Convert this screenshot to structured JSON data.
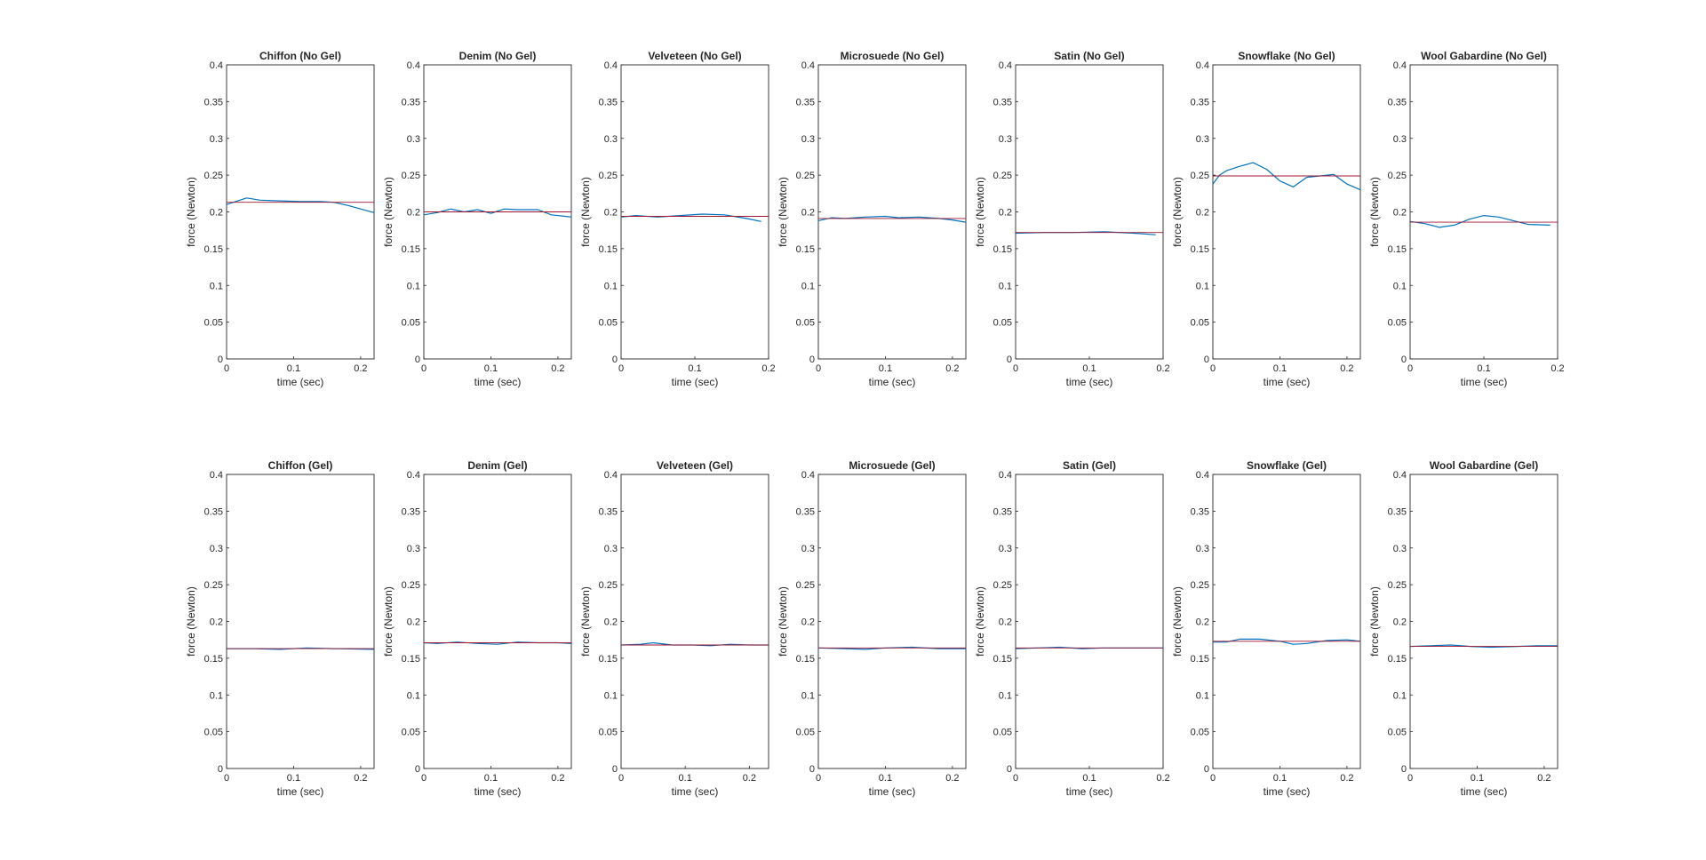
{
  "figure": {
    "xlabel": "time (sec)",
    "ylabel": "force (Newton)",
    "colors": {
      "series": "#0072BD",
      "mean": "#A2142F",
      "axis": "#262626",
      "text": "#262626"
    }
  },
  "chart_data": [
    {
      "type": "line",
      "title": "Chiffon (No Gel)",
      "xlabel": "time (sec)",
      "ylabel": "force (Newton)",
      "xlim": [
        0,
        0.22
      ],
      "ylim": [
        0,
        0.4
      ],
      "xticks": [
        "0",
        "0.1",
        "0.2"
      ],
      "yticks": [
        "0",
        "0.05",
        "0.1",
        "0.15",
        "0.2",
        "0.25",
        "0.3",
        "0.35",
        "0.4"
      ],
      "series": [
        {
          "role": "signal",
          "x": [
            0,
            0.03,
            0.05,
            0.08,
            0.11,
            0.14,
            0.16,
            0.18,
            0.2,
            0.22
          ],
          "y": [
            0.21,
            0.219,
            0.216,
            0.215,
            0.214,
            0.214,
            0.213,
            0.209,
            0.204,
            0.199
          ]
        },
        {
          "role": "mean",
          "x": [
            0,
            0.22
          ],
          "y": [
            0.213,
            0.213
          ]
        }
      ]
    },
    {
      "type": "line",
      "title": "Denim (No Gel)",
      "xlabel": "time (sec)",
      "ylabel": "force (Newton)",
      "xlim": [
        0,
        0.22
      ],
      "ylim": [
        0,
        0.4
      ],
      "xticks": [
        "0",
        "0.1",
        "0.2"
      ],
      "yticks": [
        "0",
        "0.05",
        "0.1",
        "0.15",
        "0.2",
        "0.25",
        "0.3",
        "0.35",
        "0.4"
      ],
      "series": [
        {
          "role": "signal",
          "x": [
            0,
            0.02,
            0.04,
            0.06,
            0.08,
            0.1,
            0.12,
            0.14,
            0.17,
            0.19,
            0.22
          ],
          "y": [
            0.196,
            0.199,
            0.204,
            0.2,
            0.203,
            0.198,
            0.204,
            0.203,
            0.203,
            0.196,
            0.193
          ]
        },
        {
          "role": "mean",
          "x": [
            0,
            0.22
          ],
          "y": [
            0.2,
            0.2
          ]
        }
      ]
    },
    {
      "type": "line",
      "title": "Velveteen (No Gel)",
      "xlabel": "time (sec)",
      "ylabel": "force (Newton)",
      "xlim": [
        0,
        0.2
      ],
      "ylim": [
        0,
        0.4
      ],
      "xticks": [
        "0",
        "0.1",
        "0.2"
      ],
      "yticks": [
        "0",
        "0.05",
        "0.1",
        "0.15",
        "0.2",
        "0.25",
        "0.3",
        "0.35",
        "0.4"
      ],
      "series": [
        {
          "role": "signal",
          "x": [
            0,
            0.02,
            0.05,
            0.08,
            0.11,
            0.14,
            0.17,
            0.19
          ],
          "y": [
            0.193,
            0.195,
            0.193,
            0.195,
            0.197,
            0.196,
            0.191,
            0.187
          ]
        },
        {
          "role": "mean",
          "x": [
            0,
            0.2
          ],
          "y": [
            0.194,
            0.194
          ]
        }
      ]
    },
    {
      "type": "line",
      "title": "Microsuede (No Gel)",
      "xlabel": "time (sec)",
      "ylabel": "force (Newton)",
      "xlim": [
        0,
        0.22
      ],
      "ylim": [
        0,
        0.4
      ],
      "xticks": [
        "0",
        "0.1",
        "0.2"
      ],
      "yticks": [
        "0",
        "0.05",
        "0.1",
        "0.15",
        "0.2",
        "0.25",
        "0.3",
        "0.35",
        "0.4"
      ],
      "series": [
        {
          "role": "signal",
          "x": [
            0,
            0.02,
            0.04,
            0.07,
            0.1,
            0.12,
            0.15,
            0.18,
            0.2,
            0.22
          ],
          "y": [
            0.188,
            0.192,
            0.191,
            0.193,
            0.194,
            0.192,
            0.193,
            0.191,
            0.189,
            0.186
          ]
        },
        {
          "role": "mean",
          "x": [
            0,
            0.22
          ],
          "y": [
            0.191,
            0.191
          ]
        }
      ]
    },
    {
      "type": "line",
      "title": "Satin (No Gel)",
      "xlabel": "time (sec)",
      "ylabel": "force (Newton)",
      "xlim": [
        0,
        0.2
      ],
      "ylim": [
        0,
        0.4
      ],
      "xticks": [
        "0",
        "0.1",
        "0.2"
      ],
      "yticks": [
        "0",
        "0.05",
        "0.1",
        "0.15",
        "0.2",
        "0.25",
        "0.3",
        "0.35",
        "0.4"
      ],
      "series": [
        {
          "role": "signal",
          "x": [
            0,
            0.04,
            0.08,
            0.12,
            0.16,
            0.19
          ],
          "y": [
            0.171,
            0.172,
            0.172,
            0.173,
            0.171,
            0.169
          ]
        },
        {
          "role": "mean",
          "x": [
            0,
            0.2
          ],
          "y": [
            0.172,
            0.172
          ]
        }
      ]
    },
    {
      "type": "line",
      "title": "Snowflake (No Gel)",
      "xlabel": "time (sec)",
      "ylabel": "force (Newton)",
      "xlim": [
        0,
        0.22
      ],
      "ylim": [
        0,
        0.4
      ],
      "xticks": [
        "0",
        "0.1",
        "0.2"
      ],
      "yticks": [
        "0",
        "0.05",
        "0.1",
        "0.15",
        "0.2",
        "0.25",
        "0.3",
        "0.35",
        "0.4"
      ],
      "series": [
        {
          "role": "signal",
          "x": [
            0,
            0.01,
            0.02,
            0.04,
            0.06,
            0.08,
            0.1,
            0.12,
            0.14,
            0.16,
            0.18,
            0.2,
            0.22
          ],
          "y": [
            0.238,
            0.25,
            0.256,
            0.262,
            0.267,
            0.258,
            0.242,
            0.234,
            0.247,
            0.249,
            0.251,
            0.238,
            0.23
          ]
        },
        {
          "role": "mean",
          "x": [
            0,
            0.22
          ],
          "y": [
            0.249,
            0.249
          ]
        }
      ]
    },
    {
      "type": "line",
      "title": "Wool Gabardine (No Gel)",
      "xlabel": "time (sec)",
      "ylabel": "force (Newton)",
      "xlim": [
        0,
        0.2
      ],
      "ylim": [
        0,
        0.4
      ],
      "xticks": [
        "0",
        "0.1",
        "0.2"
      ],
      "yticks": [
        "0",
        "0.05",
        "0.1",
        "0.15",
        "0.2",
        "0.25",
        "0.3",
        "0.35",
        "0.4"
      ],
      "series": [
        {
          "role": "signal",
          "x": [
            0,
            0.02,
            0.04,
            0.06,
            0.08,
            0.1,
            0.12,
            0.14,
            0.16,
            0.19
          ],
          "y": [
            0.187,
            0.184,
            0.179,
            0.182,
            0.19,
            0.195,
            0.193,
            0.188,
            0.183,
            0.182
          ]
        },
        {
          "role": "mean",
          "x": [
            0,
            0.2
          ],
          "y": [
            0.186,
            0.186
          ]
        }
      ]
    },
    {
      "type": "line",
      "title": "Chiffon (Gel)",
      "xlabel": "time (sec)",
      "ylabel": "force (Newton)",
      "xlim": [
        0,
        0.22
      ],
      "ylim": [
        0,
        0.4
      ],
      "xticks": [
        "0",
        "0.1",
        "0.2"
      ],
      "yticks": [
        "0",
        "0.05",
        "0.1",
        "0.15",
        "0.2",
        "0.25",
        "0.3",
        "0.35",
        "0.4"
      ],
      "series": [
        {
          "role": "signal",
          "x": [
            0,
            0.04,
            0.08,
            0.12,
            0.16,
            0.22
          ],
          "y": [
            0.163,
            0.163,
            0.162,
            0.164,
            0.163,
            0.162
          ]
        },
        {
          "role": "mean",
          "x": [
            0,
            0.22
          ],
          "y": [
            0.163,
            0.163
          ]
        }
      ]
    },
    {
      "type": "line",
      "title": "Denim (Gel)",
      "xlabel": "time (sec)",
      "ylabel": "force (Newton)",
      "xlim": [
        0,
        0.22
      ],
      "ylim": [
        0,
        0.4
      ],
      "xticks": [
        "0",
        "0.1",
        "0.2"
      ],
      "yticks": [
        "0",
        "0.05",
        "0.1",
        "0.15",
        "0.2",
        "0.25",
        "0.3",
        "0.35",
        "0.4"
      ],
      "series": [
        {
          "role": "signal",
          "x": [
            0,
            0.02,
            0.05,
            0.08,
            0.11,
            0.14,
            0.17,
            0.2,
            0.22
          ],
          "y": [
            0.171,
            0.17,
            0.172,
            0.17,
            0.169,
            0.172,
            0.171,
            0.171,
            0.17
          ]
        },
        {
          "role": "mean",
          "x": [
            0,
            0.22
          ],
          "y": [
            0.171,
            0.171
          ]
        }
      ]
    },
    {
      "type": "line",
      "title": "Velveteen (Gel)",
      "xlabel": "time (sec)",
      "ylabel": "force (Newton)",
      "xlim": [
        0,
        0.23
      ],
      "ylim": [
        0,
        0.4
      ],
      "xticks": [
        "0",
        "0.1",
        "0.2"
      ],
      "yticks": [
        "0",
        "0.05",
        "0.1",
        "0.15",
        "0.2",
        "0.25",
        "0.3",
        "0.35",
        "0.4"
      ],
      "series": [
        {
          "role": "signal",
          "x": [
            0,
            0.03,
            0.05,
            0.08,
            0.11,
            0.14,
            0.17,
            0.2,
            0.23
          ],
          "y": [
            0.168,
            0.169,
            0.171,
            0.168,
            0.168,
            0.167,
            0.169,
            0.168,
            0.168
          ]
        },
        {
          "role": "mean",
          "x": [
            0,
            0.23
          ],
          "y": [
            0.168,
            0.168
          ]
        }
      ]
    },
    {
      "type": "line",
      "title": "Microsuede (Gel)",
      "xlabel": "time (sec)",
      "ylabel": "force (Newton)",
      "xlim": [
        0,
        0.22
      ],
      "ylim": [
        0,
        0.4
      ],
      "xticks": [
        "0",
        "0.1",
        "0.2"
      ],
      "yticks": [
        "0",
        "0.05",
        "0.1",
        "0.15",
        "0.2",
        "0.25",
        "0.3",
        "0.35",
        "0.4"
      ],
      "series": [
        {
          "role": "signal",
          "x": [
            0,
            0.04,
            0.07,
            0.1,
            0.14,
            0.18,
            0.22
          ],
          "y": [
            0.164,
            0.163,
            0.162,
            0.164,
            0.165,
            0.163,
            0.163
          ]
        },
        {
          "role": "mean",
          "x": [
            0,
            0.22
          ],
          "y": [
            0.164,
            0.164
          ]
        }
      ]
    },
    {
      "type": "line",
      "title": "Satin (Gel)",
      "xlabel": "time (sec)",
      "ylabel": "force (Newton)",
      "xlim": [
        0,
        0.2
      ],
      "ylim": [
        0,
        0.4
      ],
      "xticks": [
        "0",
        "0.1",
        "0.2"
      ],
      "yticks": [
        "0",
        "0.05",
        "0.1",
        "0.15",
        "0.2",
        "0.25",
        "0.3",
        "0.35",
        "0.4"
      ],
      "series": [
        {
          "role": "signal",
          "x": [
            0,
            0.03,
            0.06,
            0.09,
            0.12,
            0.15,
            0.2
          ],
          "y": [
            0.163,
            0.164,
            0.165,
            0.163,
            0.164,
            0.164,
            0.164
          ]
        },
        {
          "role": "mean",
          "x": [
            0,
            0.2
          ],
          "y": [
            0.164,
            0.164
          ]
        }
      ]
    },
    {
      "type": "line",
      "title": "Snowflake (Gel)",
      "xlabel": "time (sec)",
      "ylabel": "force (Newton)",
      "xlim": [
        0,
        0.22
      ],
      "ylim": [
        0,
        0.4
      ],
      "xticks": [
        "0",
        "0.1",
        "0.2"
      ],
      "yticks": [
        "0",
        "0.05",
        "0.1",
        "0.15",
        "0.2",
        "0.25",
        "0.3",
        "0.35",
        "0.4"
      ],
      "series": [
        {
          "role": "signal",
          "x": [
            0,
            0.02,
            0.04,
            0.07,
            0.1,
            0.12,
            0.14,
            0.17,
            0.2,
            0.22
          ],
          "y": [
            0.172,
            0.172,
            0.176,
            0.176,
            0.173,
            0.169,
            0.17,
            0.174,
            0.175,
            0.173
          ]
        },
        {
          "role": "mean",
          "x": [
            0,
            0.22
          ],
          "y": [
            0.173,
            0.173
          ]
        }
      ]
    },
    {
      "type": "line",
      "title": "Wool Gabardine (Gel)",
      "xlabel": "time (sec)",
      "ylabel": "force (Newton)",
      "xlim": [
        0,
        0.22
      ],
      "ylim": [
        0,
        0.4
      ],
      "xticks": [
        "0",
        "0.1",
        "0.2"
      ],
      "yticks": [
        "0",
        "0.05",
        "0.1",
        "0.15",
        "0.2",
        "0.25",
        "0.3",
        "0.35",
        "0.4"
      ],
      "series": [
        {
          "role": "signal",
          "x": [
            0,
            0.03,
            0.06,
            0.09,
            0.12,
            0.16,
            0.19,
            0.22
          ],
          "y": [
            0.166,
            0.167,
            0.168,
            0.166,
            0.165,
            0.166,
            0.167,
            0.167
          ]
        },
        {
          "role": "mean",
          "x": [
            0,
            0.22
          ],
          "y": [
            0.166,
            0.166
          ]
        }
      ]
    }
  ]
}
